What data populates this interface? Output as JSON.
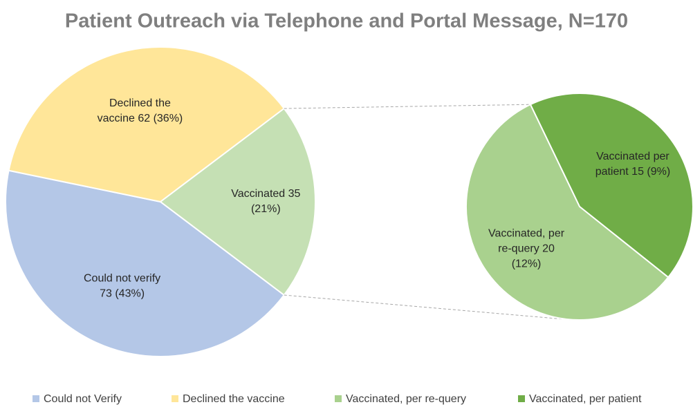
{
  "chart_data": {
    "type": "pie-of-pie",
    "title": "Patient Outreach via Telephone and Portal Message, N=170",
    "categories": [
      "Could not Verify",
      "Declined the vaccine",
      "Vaccinated, per re-query",
      "Vaccinated, per patient"
    ],
    "values": [
      73,
      62,
      20,
      15
    ],
    "value_labels": [
      [
        "Could not verify",
        "73 (43%)"
      ],
      [
        "Declined the",
        "vaccine 62 (36%)"
      ],
      [
        "Vaccinated, per",
        "re-query 20",
        "(12%)"
      ],
      [
        "Vaccinated per",
        "patient 15 (9%)"
      ]
    ],
    "colors": [
      "#b4c7e7",
      "#ffe699",
      "#a9d18e",
      "#70ad47"
    ],
    "split_count": 2,
    "combined": {
      "value": 35,
      "value_labels": [
        "Vaccinated 35",
        "(21%)"
      ],
      "color": "#c5e0b4"
    },
    "legend": "bottom"
  }
}
